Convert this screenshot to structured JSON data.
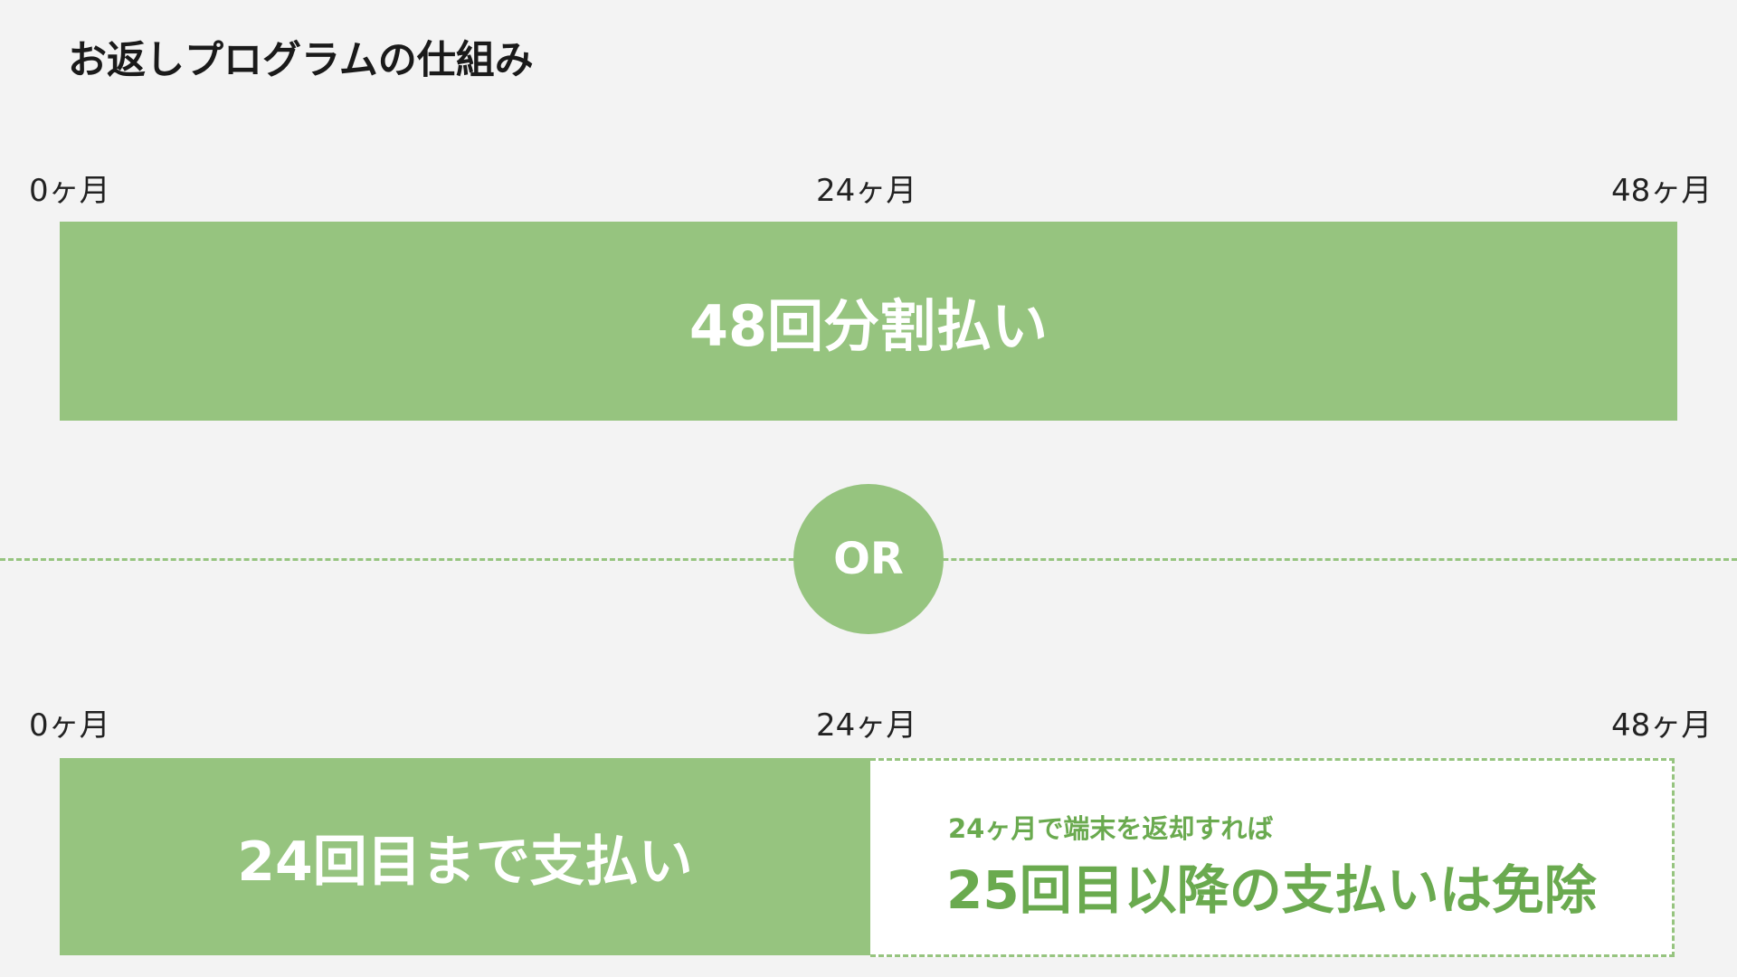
{
  "title": "お返しプログラムの仕組み",
  "timeline_labels": {
    "start": "0ヶ月",
    "mid": "24ヶ月",
    "end": "48ヶ月"
  },
  "plan1": {
    "label": "48回分割払い"
  },
  "separator": {
    "label": "OR"
  },
  "plan2": {
    "paid_label": "24回目まで支払い",
    "return_condition": "24ヶ月で端末を返却すれば",
    "waived_label": "25回目以降の支払いは免除"
  },
  "colors": {
    "accent": "#96c47f",
    "accent_text": "#6aaa4f",
    "background": "#f3f3f3"
  }
}
